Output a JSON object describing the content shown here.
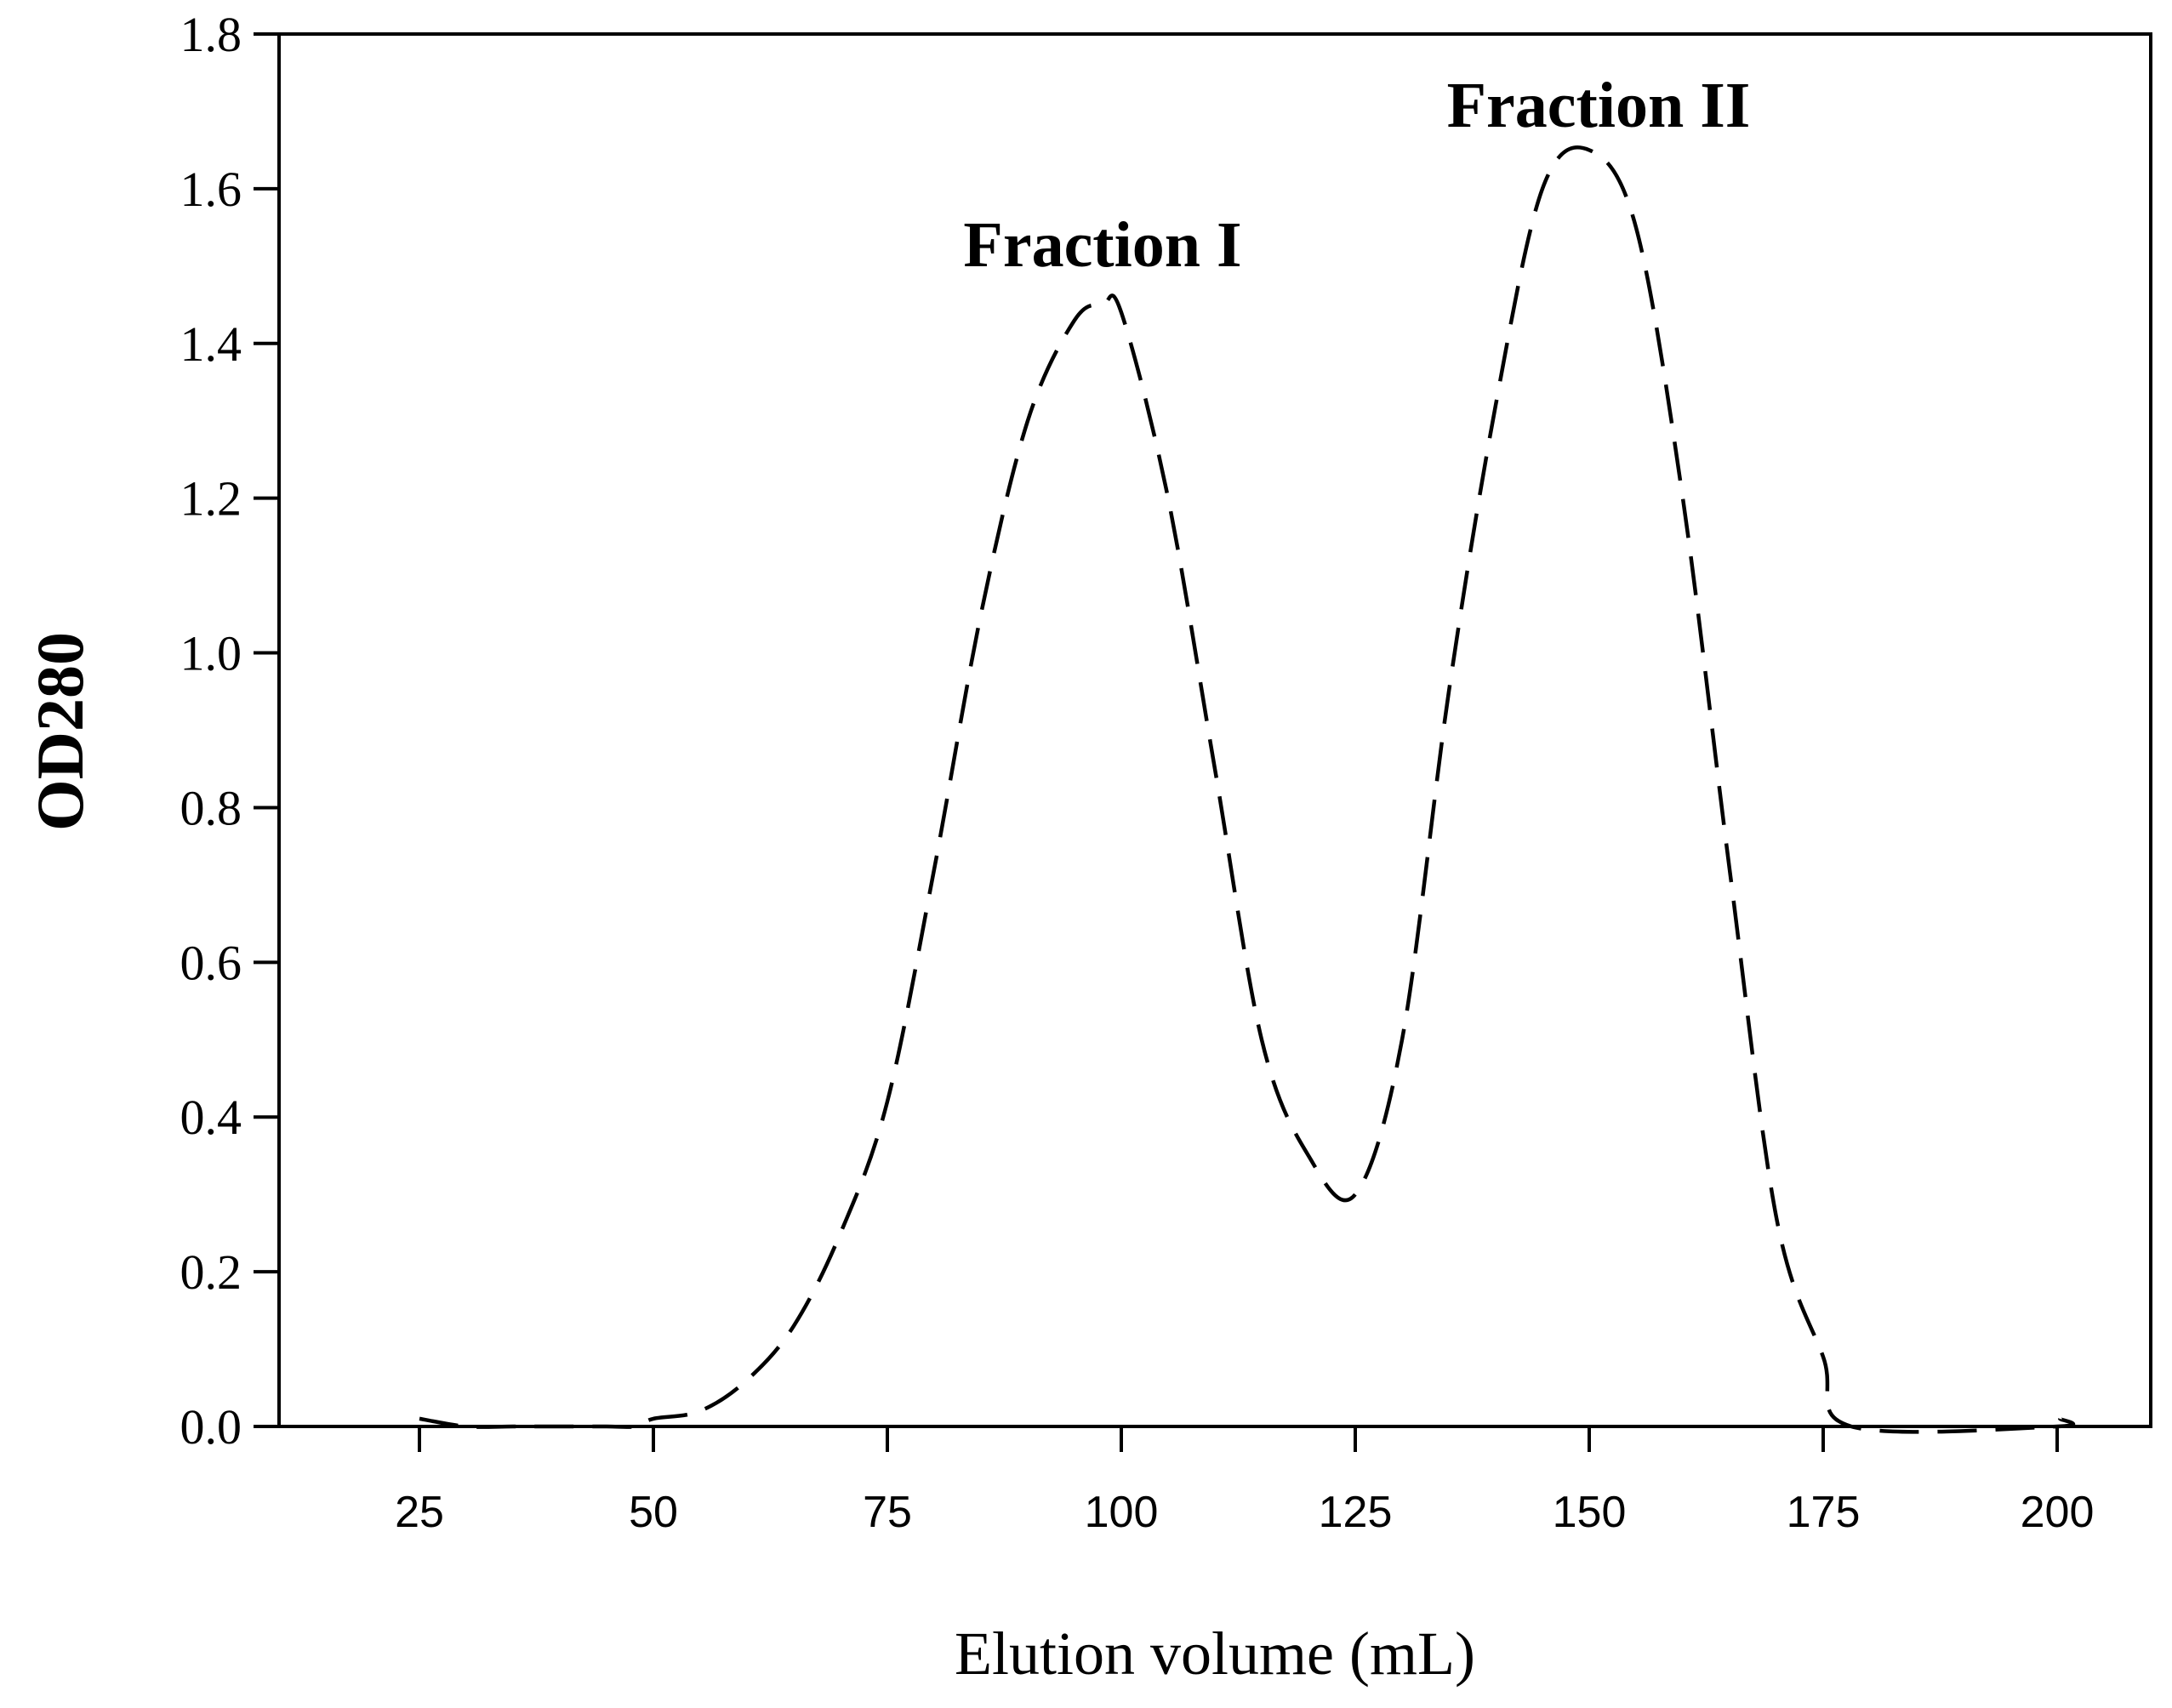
{
  "chart_data": {
    "type": "line",
    "xlabel": "Elution volume (mL)",
    "ylabel": "OD280",
    "xlim": [
      10,
      210
    ],
    "ylim": [
      0,
      1.8
    ],
    "x_ticks": [
      25,
      50,
      75,
      100,
      125,
      150,
      175,
      200
    ],
    "x_tick_labels": [
      "25",
      "50",
      "75",
      "100",
      "125",
      "150",
      "175",
      "200"
    ],
    "y_ticks": [
      0.0,
      0.2,
      0.4,
      0.6,
      0.8,
      1.0,
      1.2,
      1.4,
      1.6,
      1.8
    ],
    "y_tick_labels": [
      "0.0",
      "0.2",
      "0.4",
      "0.6",
      "0.8",
      "1.0",
      "1.2",
      "1.4",
      "1.6",
      "1.8"
    ],
    "grid": false,
    "legend": "none",
    "line_style": "dashed",
    "line_color": "#000000",
    "series": [
      {
        "x": [
          25,
          30,
          35,
          40,
          45,
          48,
          50,
          55,
          60,
          65,
          70,
          75,
          80,
          85,
          90,
          95,
          98,
          100,
          105,
          110,
          115,
          120,
          125,
          130,
          135,
          140,
          145,
          150,
          155,
          160,
          165,
          170,
          175,
          178,
          200,
          200.3
        ],
        "y": [
          0.01,
          0.0,
          0.0,
          0.0,
          0.0,
          0.0,
          0.01,
          0.02,
          0.06,
          0.13,
          0.25,
          0.42,
          0.72,
          1.05,
          1.3,
          1.43,
          1.45,
          1.44,
          1.2,
          0.85,
          0.5,
          0.35,
          0.3,
          0.5,
          0.95,
          1.32,
          1.6,
          1.65,
          1.55,
          1.2,
          0.72,
          0.27,
          0.09,
          0.0,
          0.0,
          0.01
        ]
      }
    ],
    "annotations": [
      {
        "text": "Fraction I",
        "x": 98,
        "y": 1.5
      },
      {
        "text": "Fraction II",
        "x": 151,
        "y": 1.68
      }
    ]
  }
}
